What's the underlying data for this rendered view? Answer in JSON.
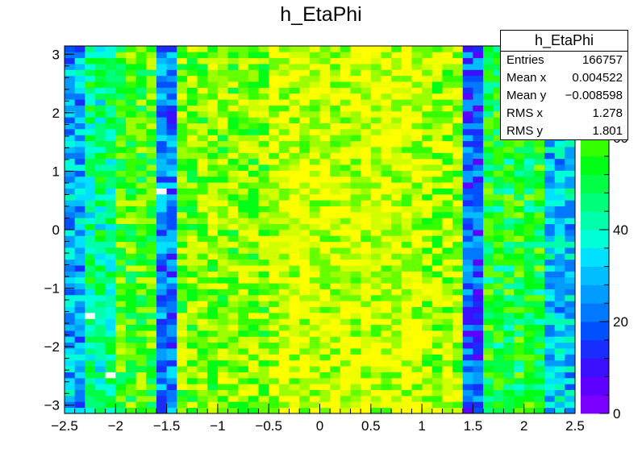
{
  "chart_data": {
    "type": "heatmap",
    "title": "h_EtaPhi",
    "x_range": [
      -2.5,
      2.5
    ],
    "y_range": [
      -3.1416,
      3.1416
    ],
    "z_range": [
      0,
      80
    ],
    "x_bins": 50,
    "y_bins": 62,
    "x_ticks": [
      {
        "v": -2.5,
        "label": "−2.5"
      },
      {
        "v": -2,
        "label": "−2"
      },
      {
        "v": -1.5,
        "label": "−1.5"
      },
      {
        "v": -1,
        "label": "−1"
      },
      {
        "v": -0.5,
        "label": "−0.5"
      },
      {
        "v": 0,
        "label": "0"
      },
      {
        "v": 0.5,
        "label": "0.5"
      },
      {
        "v": 1,
        "label": "1"
      },
      {
        "v": 1.5,
        "label": "1.5"
      },
      {
        "v": 2,
        "label": "2"
      },
      {
        "v": 2.5,
        "label": "2.5"
      }
    ],
    "y_ticks": [
      {
        "v": -3,
        "label": "−3"
      },
      {
        "v": -2,
        "label": "−2"
      },
      {
        "v": -1,
        "label": "−1"
      },
      {
        "v": 0,
        "label": "0"
      },
      {
        "v": 1,
        "label": "1"
      },
      {
        "v": 2,
        "label": "2"
      },
      {
        "v": 3,
        "label": "3"
      }
    ],
    "z_ticks": [
      {
        "v": 0,
        "label": "0"
      },
      {
        "v": 20,
        "label": "20"
      },
      {
        "v": 40,
        "label": "40"
      },
      {
        "v": 60,
        "label": "60"
      },
      {
        "v": 80,
        "label": "80"
      }
    ],
    "palette": [
      "#7c00ff",
      "#5e00ff",
      "#3c0fff",
      "#1a2dff",
      "#0050ff",
      "#0078ff",
      "#009cff",
      "#00bdff",
      "#00e0ff",
      "#00ffd8",
      "#00ffaa",
      "#00ff78",
      "#00ff45",
      "#00ff14",
      "#33ff00",
      "#66ff00",
      "#9cff00",
      "#d2ff00",
      "#f0ff00",
      "#ffff00"
    ],
    "profile_eta": [
      {
        "x_min": -2.5,
        "x_max": -2.3,
        "mean": 28
      },
      {
        "x_min": -2.3,
        "x_max": -2.0,
        "mean": 44
      },
      {
        "x_min": -2.0,
        "x_max": -1.6,
        "mean": 58
      },
      {
        "x_min": -1.6,
        "x_max": -1.4,
        "mean": 22
      },
      {
        "x_min": -1.4,
        "x_max": -0.5,
        "mean": 64
      },
      {
        "x_min": -0.5,
        "x_max": 1.0,
        "mean": 71
      },
      {
        "x_min": 1.0,
        "x_max": 1.4,
        "mean": 66
      },
      {
        "x_min": 1.4,
        "x_max": 1.6,
        "mean": 18
      },
      {
        "x_min": 1.6,
        "x_max": 2.2,
        "mean": 52
      },
      {
        "x_min": 2.2,
        "x_max": 2.5,
        "mean": 32
      }
    ],
    "notable_bins": [
      {
        "x": 0.85,
        "y": -1.3,
        "value": 78
      },
      {
        "x": 0.95,
        "y": -1.3,
        "value": 78
      },
      {
        "x": 0.65,
        "y": -1.3,
        "value": 76
      },
      {
        "x": -1.55,
        "y": 0.65,
        "value": 0
      },
      {
        "x": -2.25,
        "y": -1.5,
        "value": 0
      },
      {
        "x": -2.05,
        "y": -2.45,
        "value": 0
      }
    ]
  },
  "stats": {
    "name": "h_EtaPhi",
    "rows": [
      {
        "label": "Entries",
        "value": "166757"
      },
      {
        "label": "Mean x",
        "value": "0.004522"
      },
      {
        "label": "Mean y",
        "value": "−0.008598"
      },
      {
        "label": "RMS x",
        "value": "1.278"
      },
      {
        "label": "RMS y",
        "value": "1.801"
      }
    ]
  }
}
